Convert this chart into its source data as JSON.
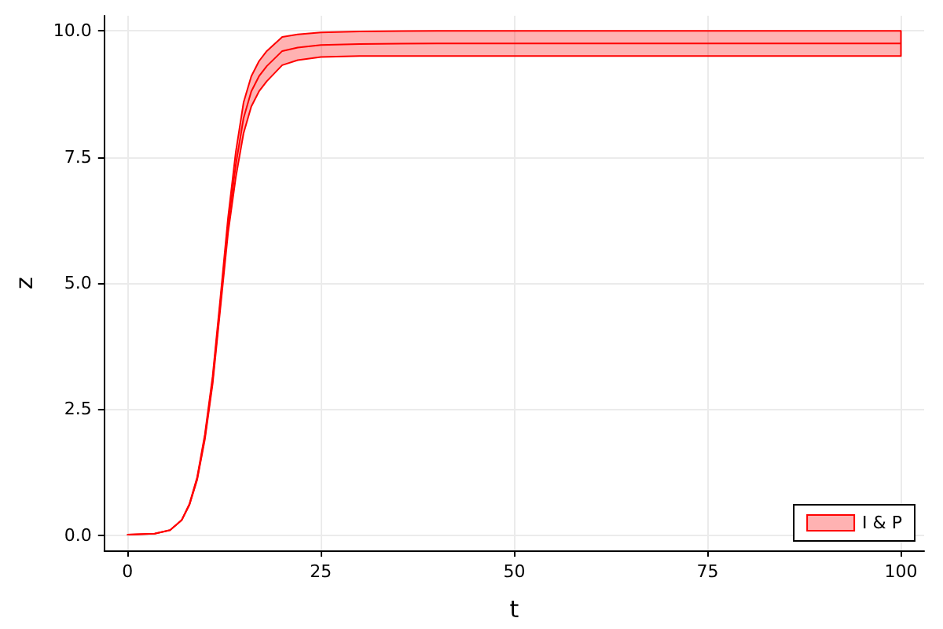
{
  "chart_data": {
    "type": "line",
    "xlabel": "t",
    "ylabel": "z",
    "xlim": [
      -3,
      103
    ],
    "xticks": [
      0,
      25,
      50,
      75,
      100
    ],
    "ylim": [
      -0.3,
      10.3
    ],
    "yticks": [
      {
        "value": 0,
        "label": "0.0"
      },
      {
        "value": 2.5,
        "label": "2.5"
      },
      {
        "value": 5,
        "label": "5.0"
      },
      {
        "value": 7.5,
        "label": "7.5"
      },
      {
        "value": 10,
        "label": "10.0"
      }
    ],
    "grid": true,
    "legend": "bottom right",
    "marker": "none",
    "series": [
      {
        "name": "I & P",
        "color": "#ff0000",
        "x": [
          0,
          3.5,
          5.5,
          7,
          8,
          9,
          10,
          11,
          12,
          13,
          14,
          15,
          16,
          17,
          18,
          20,
          22,
          25,
          30,
          40,
          60,
          80,
          100
        ],
        "values": [
          0.01,
          0.03,
          0.1,
          0.3,
          0.61,
          1.12,
          1.95,
          3.07,
          4.6,
          6.15,
          7.35,
          8.27,
          8.8,
          9.1,
          9.3,
          9.6,
          9.67,
          9.72,
          9.74,
          9.75,
          9.75,
          9.75,
          9.75
        ],
        "lower": [
          0.01,
          0.03,
          0.1,
          0.3,
          0.6,
          1.1,
          1.9,
          3.0,
          4.5,
          6.0,
          7.1,
          7.97,
          8.5,
          8.8,
          9.0,
          9.32,
          9.42,
          9.48,
          9.5,
          9.5,
          9.5,
          9.5,
          9.5
        ],
        "upper": [
          0.01,
          0.03,
          0.1,
          0.3,
          0.62,
          1.15,
          2.0,
          3.15,
          4.7,
          6.3,
          7.6,
          8.58,
          9.1,
          9.4,
          9.6,
          9.88,
          9.93,
          9.97,
          9.99,
          10,
          10,
          10,
          10
        ]
      }
    ]
  }
}
